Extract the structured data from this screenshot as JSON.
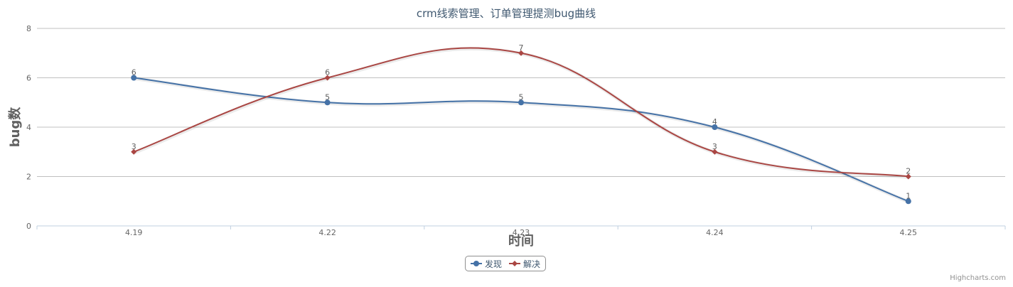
{
  "chart_data": {
    "type": "line",
    "title": "crm线索管理、订单管理提测bug曲线",
    "xlabel": "时间",
    "ylabel": "bug数",
    "categories": [
      "4.19",
      "4.22",
      "4.23",
      "4.24",
      "4.25"
    ],
    "ylim": [
      0,
      8
    ],
    "yticks": [
      0,
      2,
      4,
      6,
      8
    ],
    "grid": true,
    "legend_position": "bottom-center",
    "series": [
      {
        "name": "发现",
        "values": [
          6,
          5,
          5,
          4,
          1
        ],
        "color": "#4572A7",
        "marker": "circle"
      },
      {
        "name": "解决",
        "values": [
          3,
          6,
          7,
          3,
          2
        ],
        "color": "#AA4643",
        "marker": "diamond"
      }
    ]
  },
  "credits": "Highcharts.com"
}
